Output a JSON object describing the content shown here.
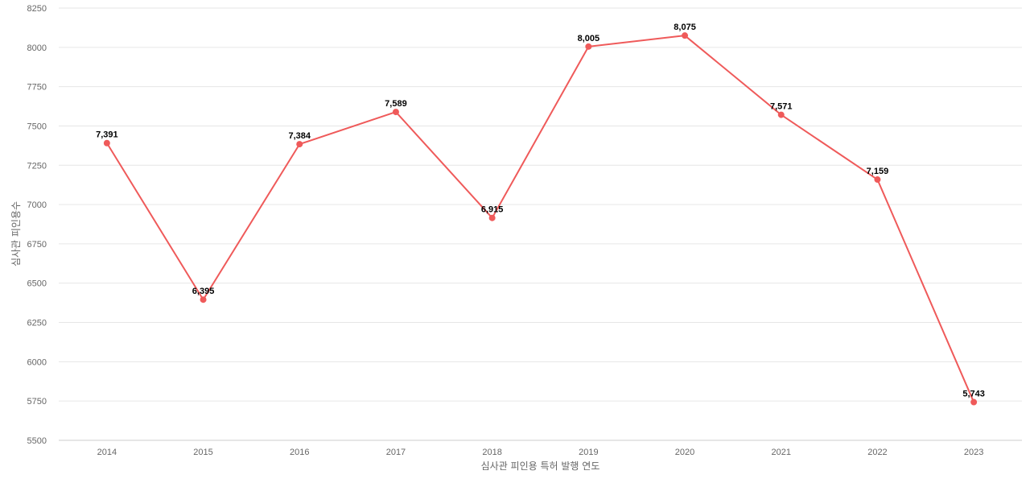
{
  "chart_data": {
    "type": "line",
    "title": "",
    "xlabel": "심사관 피인용 특허 발행 연도",
    "ylabel": "심사관 피인용수",
    "categories": [
      "2014",
      "2015",
      "2016",
      "2017",
      "2018",
      "2019",
      "2020",
      "2021",
      "2022",
      "2023"
    ],
    "series": [
      {
        "values": [
          7391,
          6395,
          7384,
          7589,
          6915,
          8005,
          8075,
          7571,
          7159,
          5743
        ],
        "labels": [
          "7,391",
          "6,395",
          "7,384",
          "7,589",
          "6,915",
          "8,005",
          "8,075",
          "7,571",
          "7,159",
          "5,743"
        ],
        "color": "#ef5a5a"
      }
    ],
    "ylim": [
      5500,
      8250
    ],
    "yticks": [
      "5500",
      "5750",
      "6000",
      "6250",
      "6500",
      "6750",
      "7000",
      "7250",
      "7500",
      "7750",
      "8000",
      "8250"
    ],
    "grid": true,
    "legend": "none"
  }
}
